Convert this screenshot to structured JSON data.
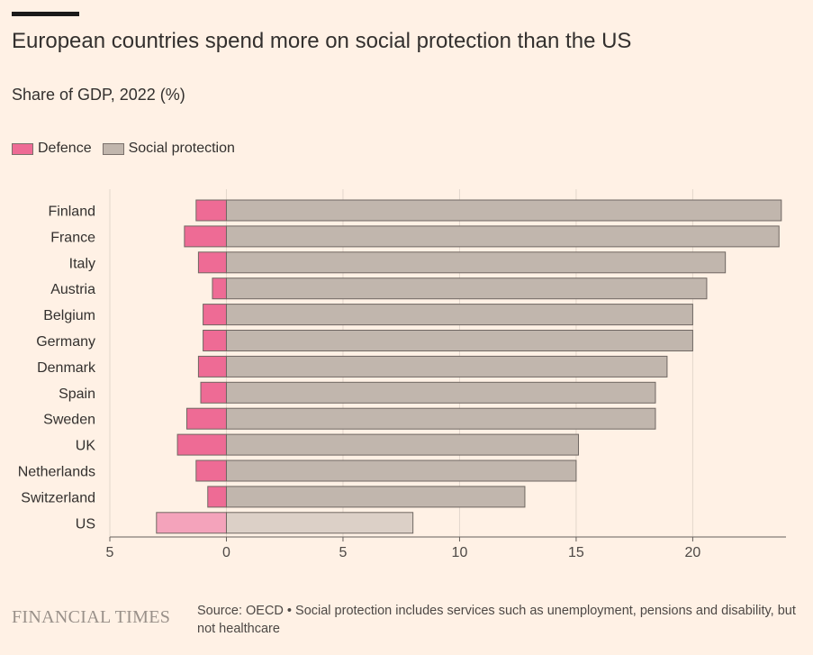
{
  "header": {
    "title": "European countries spend more on social protection than the US",
    "subtitle": "Share of GDP, 2022 (%)"
  },
  "legend": {
    "defence_label": "Defence",
    "social_label": "Social protection"
  },
  "colors": {
    "defence": "#ee6b95",
    "social": "#c1b6ad",
    "defence_highlight": "#f4a3bb",
    "social_highlight": "#dcd0c7",
    "background": "#fff1e5",
    "bar_outline": "#6f6762"
  },
  "footer": {
    "brand": "FINANCIAL TIMES",
    "source": "Source: OECD • Social protection includes services such as unemployment, pensions and disability, but not healthcare"
  },
  "chart_data": {
    "type": "bar",
    "orientation": "horizontal",
    "categories": [
      "Finland",
      "France",
      "Italy",
      "Austria",
      "Belgium",
      "Germany",
      "Denmark",
      "Spain",
      "Sweden",
      "UK",
      "Netherlands",
      "Switzerland",
      "US"
    ],
    "series": [
      {
        "name": "Defence",
        "values": [
          1.3,
          1.8,
          1.2,
          0.6,
          1.0,
          1.0,
          1.2,
          1.1,
          1.7,
          2.1,
          1.3,
          0.8,
          3.0
        ]
      },
      {
        "name": "Social protection",
        "values": [
          23.8,
          23.7,
          21.4,
          20.6,
          20.0,
          20.0,
          18.9,
          18.4,
          18.4,
          15.1,
          15.0,
          12.8,
          8.0
        ]
      }
    ],
    "highlight": "US",
    "xlim": [
      -5,
      24
    ],
    "xticks": [
      -5,
      0,
      5,
      10,
      15,
      20
    ],
    "xtick_labels": [
      "5",
      "0",
      "5",
      "10",
      "15",
      "20"
    ],
    "grid": true,
    "legend_position": "top-left"
  }
}
